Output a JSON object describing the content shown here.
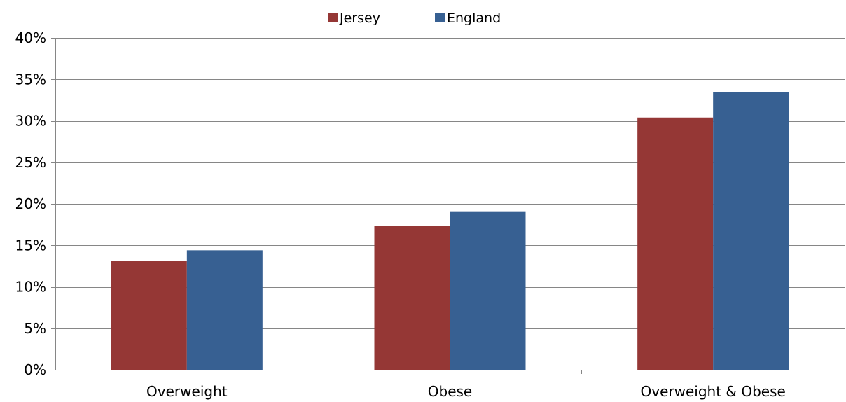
{
  "chart_data": {
    "type": "bar",
    "title": "",
    "xlabel": "",
    "ylabel": "",
    "categories": [
      "Overweight",
      "Obese",
      "Overweight & Obese"
    ],
    "series": [
      {
        "name": "Jersey",
        "color": "#953735",
        "values": [
          13.1,
          17.3,
          30.4
        ]
      },
      {
        "name": "England",
        "color": "#376092",
        "values": [
          14.4,
          19.1,
          33.5
        ]
      }
    ],
    "ylim": [
      0,
      40
    ],
    "y_ticks": [
      0,
      5,
      10,
      15,
      20,
      25,
      30,
      35,
      40
    ],
    "y_tick_labels": [
      "0%",
      "5%",
      "10%",
      "15%",
      "20%",
      "25%",
      "30%",
      "35%",
      "40%"
    ],
    "grid": true,
    "legend_position": "top-center"
  }
}
